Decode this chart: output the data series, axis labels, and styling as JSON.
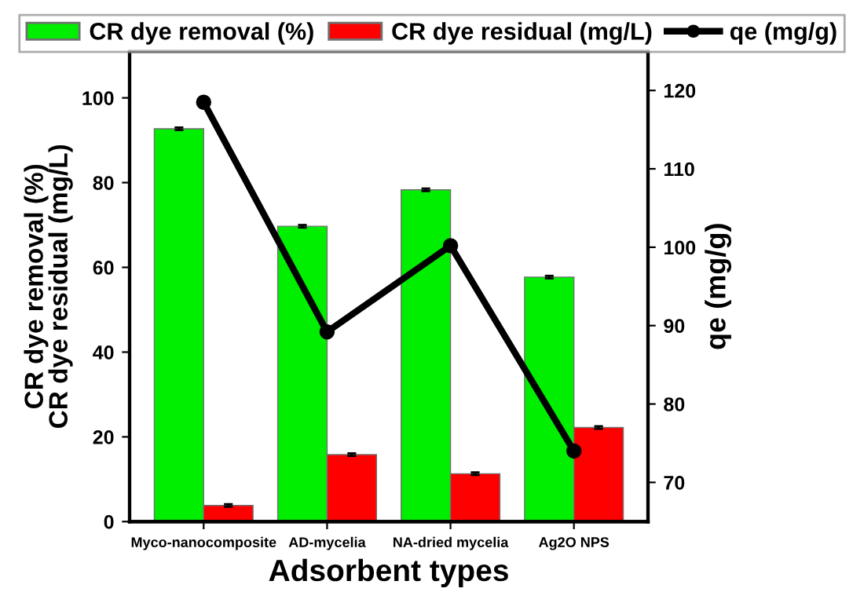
{
  "chart_data": {
    "type": "bar",
    "xlabel": "Adsorbent types",
    "ylabel": "CR dye removal (%)\nCR dye residual (mg/L)",
    "y2label": "qe (mg/g)",
    "categories": [
      "Myco-nanocomposite",
      "AD-mycelia",
      "NA-dried mycelia",
      "Ag2O NPS"
    ],
    "series": [
      {
        "name": "CR dye removal (%)",
        "color": "#00ee00",
        "values": [
          92.7,
          69.7,
          78.3,
          57.7
        ],
        "errors": [
          0.3,
          0.3,
          0.3,
          0.3
        ]
      },
      {
        "name": "CR dye residual (mg/L)",
        "color": "#ff0000",
        "values": [
          3.8,
          15.8,
          11.3,
          22.2
        ],
        "errors": [
          0.3,
          0.3,
          0.3,
          0.3
        ]
      },
      {
        "name": "qe (mg/g)",
        "type": "line",
        "axis": "y2",
        "color": "#000000",
        "values": [
          118.5,
          89.2,
          100.2,
          74.0
        ],
        "marker": "circle",
        "line_style": "solid"
      }
    ],
    "ylim": [
      0,
      111
    ],
    "yticks": [
      0,
      20,
      40,
      60,
      80,
      100
    ],
    "y2lim": [
      65,
      125
    ],
    "y2ticks": [
      70,
      80,
      90,
      100,
      110,
      120
    ],
    "legend": "top",
    "grid": false
  }
}
